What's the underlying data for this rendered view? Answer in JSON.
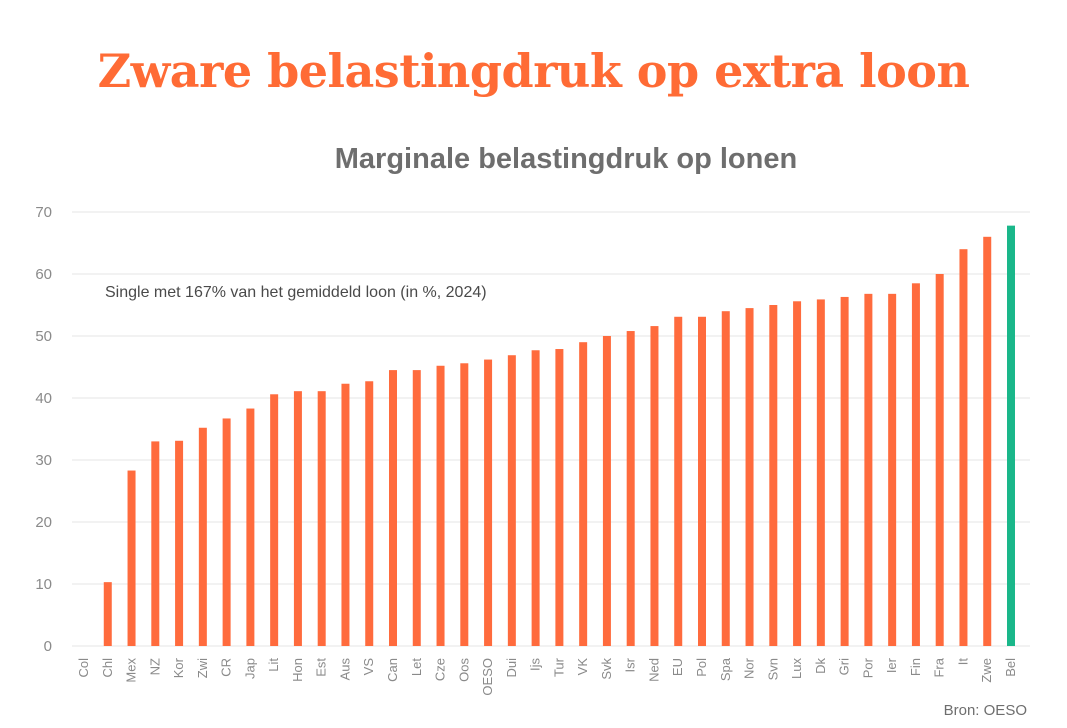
{
  "page": {
    "headline": "Zware belastingdruk op extra loon",
    "source": "Bron: OESO"
  },
  "colors": {
    "headline": "#ff6b35",
    "bar": "#ff6b3d",
    "highlight": "#1ab78a",
    "grid": "#e6e6e6",
    "text_muted": "#8a8a8a"
  },
  "chart_data": {
    "type": "bar",
    "title": "Marginale belastingdruk op lonen",
    "annotation": "Single met 167% van het gemiddeld loon (in %, 2024)",
    "xlabel": "",
    "ylabel": "",
    "ylim": [
      0,
      70
    ],
    "yticks": [
      0,
      10,
      20,
      30,
      40,
      50,
      60,
      70
    ],
    "grid": true,
    "highlight_category": "Bel",
    "categories": [
      "Col",
      "Chl",
      "Mex",
      "NZ",
      "Kor",
      "Zwi",
      "CR",
      "Jap",
      "Lit",
      "Hon",
      "Est",
      "Aus",
      "VS",
      "Can",
      "Let",
      "Cze",
      "Oos",
      "OESO",
      "Dui",
      "Ijs",
      "Tur",
      "VK",
      "Svk",
      "Isr",
      "Ned",
      "EU",
      "Pol",
      "Spa",
      "Nor",
      "Svn",
      "Lux",
      "Dk",
      "Gri",
      "Por",
      "Ier",
      "Fin",
      "Fra",
      "It",
      "Zwe",
      "Bel"
    ],
    "values": [
      0,
      10.3,
      28.3,
      33.0,
      33.1,
      35.2,
      36.7,
      38.3,
      40.6,
      41.1,
      41.1,
      42.3,
      42.7,
      44.5,
      44.5,
      45.2,
      45.6,
      46.2,
      46.9,
      47.7,
      47.9,
      49.0,
      50.0,
      50.8,
      51.6,
      53.1,
      53.1,
      54.0,
      54.5,
      55.0,
      55.6,
      55.9,
      56.3,
      56.8,
      56.8,
      58.5,
      60.0,
      64.0,
      66.0,
      67.8
    ]
  }
}
